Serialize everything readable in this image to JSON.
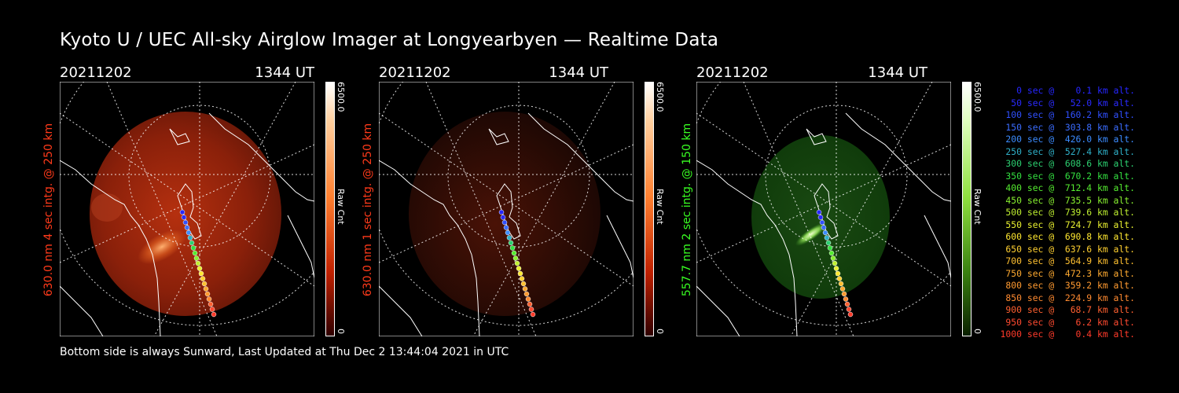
{
  "title": "Kyoto U / UEC All-sky Airglow Imager at Longyearbyen — Realtime Data",
  "footer": "Bottom side is always Sunward, Last Updated at Thu Dec  2 13:44:04 2021 in UTC",
  "colors": {
    "background": "#000000",
    "red_channel": "#ff3a1a",
    "green_channel": "#39ff22"
  },
  "panels": [
    {
      "date": "20211202",
      "time": "1344 UT",
      "ylabel": "630.0 nm 4 sec intg. @ 250 km",
      "label_color": "#ff3a1a",
      "colorbar_max": "6500.0",
      "colorbar_min": "0",
      "colorbar_unit": "Raw Cnt",
      "colorbar_color": "red"
    },
    {
      "date": "20211202",
      "time": "1344 UT",
      "ylabel": "630.0 nm 1 sec intg. @ 250 km",
      "label_color": "#ff3a1a",
      "colorbar_max": "6500.0",
      "colorbar_min": "0",
      "colorbar_unit": "Raw Cnt",
      "colorbar_color": "red"
    },
    {
      "date": "20211202",
      "time": "1344 UT",
      "ylabel": "557.7 nm 2 sec intg. @ 150 km",
      "label_color": "#39ff22",
      "colorbar_max": "6500.0",
      "colorbar_min": "0",
      "colorbar_unit": "Raw Cnt",
      "colorbar_color": "green"
    }
  ],
  "trajectory_legend": [
    {
      "text": "   0 sec @    0.1 km alt.",
      "color": "#2626ff"
    },
    {
      "text": "  50 sec @   52.0 km alt.",
      "color": "#2a2aff"
    },
    {
      "text": " 100 sec @  160.2 km alt.",
      "color": "#3050ff"
    },
    {
      "text": " 150 sec @  303.8 km alt.",
      "color": "#3a6cff"
    },
    {
      "text": " 200 sec @  426.0 km alt.",
      "color": "#3c8cff"
    },
    {
      "text": " 250 sec @  527.4 km alt.",
      "color": "#2fb0c8"
    },
    {
      "text": " 300 sec @  608.6 km alt.",
      "color": "#2cd070"
    },
    {
      "text": " 350 sec @  670.2 km alt.",
      "color": "#33e040"
    },
    {
      "text": " 400 sec @  712.4 km alt.",
      "color": "#55ec30"
    },
    {
      "text": " 450 sec @  735.5 km alt.",
      "color": "#88f030"
    },
    {
      "text": " 500 sec @  739.6 km alt.",
      "color": "#bff030"
    },
    {
      "text": " 550 sec @  724.7 km alt.",
      "color": "#e8f030"
    },
    {
      "text": " 600 sec @  690.8 km alt.",
      "color": "#ffe830"
    },
    {
      "text": " 650 sec @  637.6 km alt.",
      "color": "#ffd030"
    },
    {
      "text": " 700 sec @  564.9 km alt.",
      "color": "#ffc030"
    },
    {
      "text": " 750 sec @  472.3 km alt.",
      "color": "#ffaa30"
    },
    {
      "text": " 800 sec @  359.2 km alt.",
      "color": "#ff9a30"
    },
    {
      "text": " 850 sec @  224.9 km alt.",
      "color": "#ff8a30"
    },
    {
      "text": " 900 sec @   68.7 km alt.",
      "color": "#ff6030"
    },
    {
      "text": " 950 sec @    6.2 km alt.",
      "color": "#ff4a30"
    },
    {
      "text": "1000 sec @    0.4 km alt.",
      "color": "#ff3a2a"
    }
  ]
}
